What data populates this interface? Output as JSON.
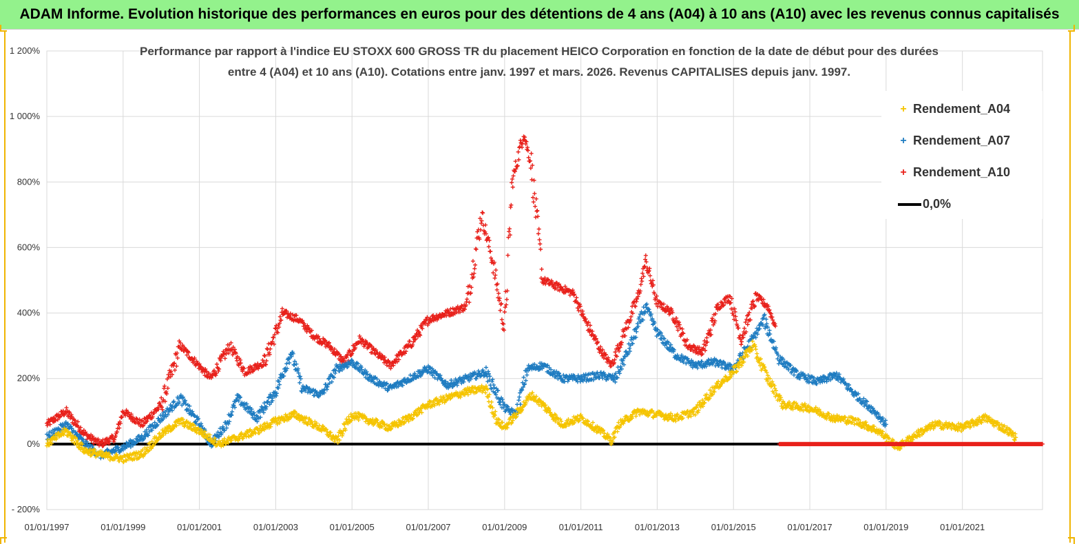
{
  "banner": "ADAM Informe. Evolution historique des performances en euros pour des détentions de 4 ans (A04) à 10 ans (A10) avec les revenus connus capitalisés",
  "chart_data": {
    "type": "scatter",
    "title_line1": "Performance par rapport à l'indice EU STOXX 600 GROSS TR  du placement HEICO Corporation en fonction de la date de début pour des durées",
    "title_line2": "entre 4 (A04) et 10 ans (A10). Cotations entre janv. 1997 et mars. 2026. Revenus CAPITALISES depuis janv. 1997.",
    "x_ticks": [
      "01/01/1997",
      "01/01/1999",
      "01/01/2001",
      "01/01/2003",
      "01/01/2005",
      "01/01/2007",
      "01/01/2009",
      "01/01/2011",
      "01/01/2013",
      "01/01/2015",
      "01/01/2017",
      "01/01/2019",
      "01/01/2021"
    ],
    "y_ticks": [
      "- 200%",
      "0%",
      "200%",
      "400%",
      "600%",
      "800%",
      "1 000%",
      "1 200%"
    ],
    "x_range": [
      1997.0,
      2023.1
    ],
    "ylim": [
      -200,
      1200
    ],
    "grid": true,
    "legend_position": "top-right",
    "series": [
      {
        "name": "Rendement_A04",
        "color": "#f5c400",
        "points": [
          [
            1997.0,
            0
          ],
          [
            1997.5,
            40
          ],
          [
            1998.0,
            -20
          ],
          [
            1998.5,
            -35
          ],
          [
            1999.0,
            -45
          ],
          [
            1999.5,
            -30
          ],
          [
            2000.0,
            30
          ],
          [
            2000.5,
            70
          ],
          [
            2001.0,
            40
          ],
          [
            2001.5,
            0
          ],
          [
            2002.0,
            20
          ],
          [
            2002.5,
            40
          ],
          [
            2003.0,
            70
          ],
          [
            2003.5,
            90
          ],
          [
            2004.0,
            60
          ],
          [
            2004.3,
            40
          ],
          [
            2004.6,
            10
          ],
          [
            2005.0,
            90
          ],
          [
            2005.5,
            70
          ],
          [
            2006.0,
            50
          ],
          [
            2006.5,
            80
          ],
          [
            2007.0,
            120
          ],
          [
            2007.5,
            140
          ],
          [
            2008.0,
            160
          ],
          [
            2008.5,
            170
          ],
          [
            2008.8,
            70
          ],
          [
            2009.0,
            50
          ],
          [
            2009.3,
            90
          ],
          [
            2009.7,
            150
          ],
          [
            2010.0,
            120
          ],
          [
            2010.5,
            60
          ],
          [
            2011.0,
            80
          ],
          [
            2011.5,
            40
          ],
          [
            2011.8,
            10
          ],
          [
            2012.0,
            60
          ],
          [
            2012.5,
            100
          ],
          [
            2013.0,
            90
          ],
          [
            2013.5,
            80
          ],
          [
            2014.0,
            100
          ],
          [
            2014.5,
            170
          ],
          [
            2015.0,
            220
          ],
          [
            2015.5,
            300
          ],
          [
            2015.9,
            200
          ],
          [
            2016.3,
            120
          ],
          [
            2017.0,
            110
          ],
          [
            2017.6,
            80
          ],
          [
            2018.2,
            70
          ],
          [
            2018.8,
            40
          ],
          [
            2019.3,
            -10
          ],
          [
            2019.8,
            30
          ],
          [
            2020.3,
            60
          ],
          [
            2021.0,
            50
          ],
          [
            2021.6,
            80
          ],
          [
            2022.2,
            40
          ],
          [
            2022.4,
            20
          ]
        ]
      },
      {
        "name": "Rendement_A07",
        "color": "#1f7cc1",
        "points": [
          [
            1997.0,
            20
          ],
          [
            1997.5,
            60
          ],
          [
            1998.0,
            0
          ],
          [
            1998.4,
            -35
          ],
          [
            1999.0,
            -10
          ],
          [
            1999.5,
            20
          ],
          [
            2000.0,
            80
          ],
          [
            2000.5,
            140
          ],
          [
            2001.0,
            60
          ],
          [
            2001.3,
            0
          ],
          [
            2001.7,
            60
          ],
          [
            2002.0,
            140
          ],
          [
            2002.5,
            80
          ],
          [
            2003.0,
            160
          ],
          [
            2003.4,
            280
          ],
          [
            2003.7,
            170
          ],
          [
            2004.2,
            150
          ],
          [
            2004.6,
            230
          ],
          [
            2005.0,
            250
          ],
          [
            2005.5,
            200
          ],
          [
            2006.0,
            170
          ],
          [
            2006.5,
            200
          ],
          [
            2007.0,
            230
          ],
          [
            2007.5,
            180
          ],
          [
            2008.0,
            200
          ],
          [
            2008.5,
            220
          ],
          [
            2009.0,
            110
          ],
          [
            2009.3,
            90
          ],
          [
            2009.6,
            230
          ],
          [
            2010.0,
            240
          ],
          [
            2010.5,
            200
          ],
          [
            2011.0,
            200
          ],
          [
            2011.5,
            210
          ],
          [
            2011.9,
            200
          ],
          [
            2012.3,
            300
          ],
          [
            2012.7,
            420
          ],
          [
            2013.0,
            340
          ],
          [
            2013.5,
            270
          ],
          [
            2014.0,
            240
          ],
          [
            2014.5,
            250
          ],
          [
            2015.0,
            230
          ],
          [
            2015.5,
            320
          ],
          [
            2015.8,
            380
          ],
          [
            2016.2,
            260
          ],
          [
            2016.7,
            210
          ],
          [
            2017.2,
            190
          ],
          [
            2017.7,
            210
          ],
          [
            2018.2,
            150
          ],
          [
            2018.7,
            100
          ],
          [
            2019.0,
            60
          ]
        ]
      },
      {
        "name": "Rendement_A10",
        "color": "#e8211b",
        "points": [
          [
            1997.0,
            60
          ],
          [
            1997.5,
            100
          ],
          [
            1998.0,
            30
          ],
          [
            1998.4,
            0
          ],
          [
            1998.8,
            20
          ],
          [
            1999.0,
            100
          ],
          [
            1999.5,
            60
          ],
          [
            2000.0,
            120
          ],
          [
            2000.5,
            300
          ],
          [
            2000.9,
            250
          ],
          [
            2001.3,
            200
          ],
          [
            2001.8,
            300
          ],
          [
            2002.2,
            220
          ],
          [
            2002.7,
            250
          ],
          [
            2003.2,
            400
          ],
          [
            2003.6,
            380
          ],
          [
            2004.0,
            330
          ],
          [
            2004.4,
            300
          ],
          [
            2004.8,
            250
          ],
          [
            2005.2,
            320
          ],
          [
            2005.6,
            280
          ],
          [
            2006.0,
            240
          ],
          [
            2006.5,
            300
          ],
          [
            2007.0,
            380
          ],
          [
            2007.5,
            400
          ],
          [
            2008.0,
            420
          ],
          [
            2008.4,
            700
          ],
          [
            2008.7,
            550
          ],
          [
            2009.0,
            350
          ],
          [
            2009.2,
            800
          ],
          [
            2009.5,
            950
          ],
          [
            2009.7,
            850
          ],
          [
            2010.0,
            500
          ],
          [
            2010.4,
            480
          ],
          [
            2010.8,
            460
          ],
          [
            2011.1,
            380
          ],
          [
            2011.5,
            290
          ],
          [
            2011.8,
            240
          ],
          [
            2012.1,
            330
          ],
          [
            2012.5,
            450
          ],
          [
            2012.7,
            560
          ],
          [
            2013.0,
            430
          ],
          [
            2013.4,
            400
          ],
          [
            2013.8,
            300
          ],
          [
            2014.2,
            280
          ],
          [
            2014.6,
            420
          ],
          [
            2014.9,
            450
          ],
          [
            2015.2,
            320
          ],
          [
            2015.6,
            450
          ],
          [
            2015.9,
            420
          ],
          [
            2016.1,
            360
          ]
        ]
      },
      {
        "name": "0,0%",
        "color": "#000000",
        "type": "line",
        "points": [
          [
            1997.0,
            0
          ],
          [
            2023.1,
            0
          ]
        ]
      }
    ],
    "red_zero_segment": {
      "x_start": 2016.2,
      "x_end": 2023.1,
      "y": 0,
      "color": "#e8211b"
    }
  }
}
